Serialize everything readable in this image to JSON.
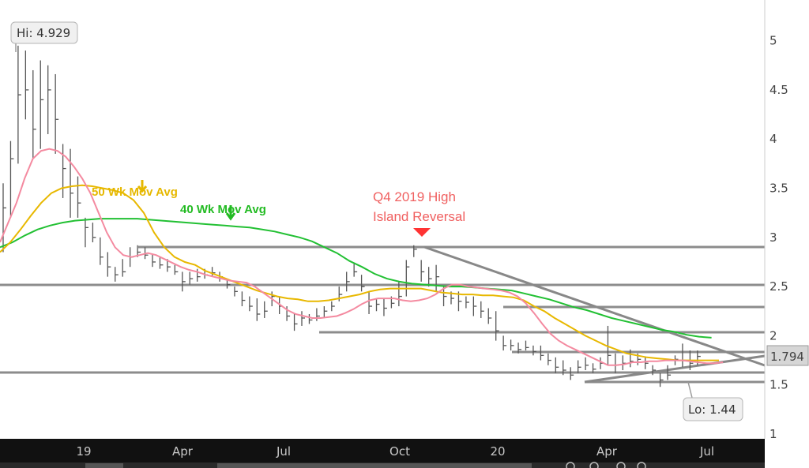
{
  "chart_data": {
    "type": "bar",
    "subtype": "weekly OHLC price chart",
    "y_axis": {
      "ticks": [
        "5",
        "4.5",
        "4",
        "3.5",
        "3",
        "2.5",
        "2",
        "1.5",
        "1"
      ],
      "range": [
        1,
        5.25
      ],
      "side": "right"
    },
    "x_axis": {
      "ticks": [
        "19",
        "Apr",
        "Jul",
        "Oct",
        "20",
        "Apr",
        "Jul"
      ]
    },
    "grid": false,
    "last_price": "1.794",
    "high_label": "Hi: 4.929",
    "low_label": "Lo: 1.44",
    "annotations": [
      {
        "text": "50 Wk Mov Avg",
        "color": "#e6b800"
      },
      {
        "text": "40 Wk Mov Avg",
        "color": "#22bb22"
      },
      {
        "text": "Q4 2019 High",
        "color": "#f06060"
      },
      {
        "text": "Island Reversal",
        "color": "#f06060"
      }
    ],
    "colors": {
      "ma_pink": "#f48aa0",
      "ma_yellow": "#e8b800",
      "ma_green": "#22c033",
      "price_bars": "#555555",
      "trendlines": "#888888",
      "axis_panel": "#111111",
      "arrow_red": "#ff3333"
    },
    "bars": [
      [
        2.85,
        3.3,
        3.55
      ],
      [
        3.2,
        3.8,
        3.98
      ],
      [
        3.75,
        4.45,
        4.95
      ],
      [
        4.2,
        4.5,
        4.9
      ],
      [
        3.8,
        4.1,
        4.7
      ],
      [
        3.9,
        4.4,
        4.8
      ],
      [
        4.05,
        4.5,
        4.75
      ],
      [
        3.85,
        4.2,
        4.66
      ],
      [
        3.4,
        3.7,
        3.95
      ],
      [
        3.2,
        3.45,
        3.9
      ],
      [
        3.2,
        3.35,
        3.62
      ],
      [
        2.9,
        3.1,
        3.2
      ],
      [
        2.95,
        3.0,
        3.15
      ],
      [
        2.72,
        2.8,
        3.0
      ],
      [
        2.6,
        2.7,
        2.85
      ],
      [
        2.55,
        2.62,
        2.7
      ],
      [
        2.6,
        2.65,
        2.78
      ],
      [
        2.7,
        2.8,
        2.9
      ],
      [
        2.8,
        2.85,
        2.92
      ],
      [
        2.78,
        2.82,
        2.9
      ],
      [
        2.7,
        2.75,
        2.83
      ],
      [
        2.68,
        2.72,
        2.8
      ],
      [
        2.65,
        2.7,
        2.78
      ],
      [
        2.62,
        2.65,
        2.72
      ],
      [
        2.45,
        2.55,
        2.65
      ],
      [
        2.52,
        2.58,
        2.65
      ],
      [
        2.55,
        2.6,
        2.68
      ],
      [
        2.58,
        2.62,
        2.68
      ],
      [
        2.6,
        2.64,
        2.7
      ],
      [
        2.55,
        2.6,
        2.65
      ],
      [
        2.48,
        2.52,
        2.58
      ],
      [
        2.4,
        2.45,
        2.5
      ],
      [
        2.3,
        2.36,
        2.45
      ],
      [
        2.25,
        2.3,
        2.4
      ],
      [
        2.15,
        2.22,
        2.38
      ],
      [
        2.18,
        2.25,
        2.35
      ],
      [
        2.3,
        2.4,
        2.45
      ],
      [
        2.22,
        2.3,
        2.4
      ],
      [
        2.15,
        2.2,
        2.3
      ],
      [
        2.05,
        2.12,
        2.22
      ],
      [
        2.1,
        2.18,
        2.25
      ],
      [
        2.12,
        2.16,
        2.22
      ],
      [
        2.15,
        2.2,
        2.28
      ],
      [
        2.18,
        2.25,
        2.3
      ],
      [
        2.25,
        2.3,
        2.35
      ],
      [
        2.35,
        2.42,
        2.5
      ],
      [
        2.45,
        2.55,
        2.65
      ],
      [
        2.6,
        2.65,
        2.73
      ],
      [
        2.45,
        2.5,
        2.62
      ],
      [
        2.22,
        2.3,
        2.45
      ],
      [
        2.25,
        2.32,
        2.38
      ],
      [
        2.2,
        2.28,
        2.38
      ],
      [
        2.28,
        2.33,
        2.4
      ],
      [
        2.3,
        2.4,
        2.55
      ],
      [
        2.4,
        2.7,
        2.77
      ],
      [
        2.8,
        2.88,
        2.92
      ],
      [
        2.55,
        2.65,
        2.77
      ],
      [
        2.5,
        2.58,
        2.7
      ],
      [
        2.45,
        2.6,
        2.72
      ],
      [
        2.3,
        2.4,
        2.5
      ],
      [
        2.32,
        2.38,
        2.45
      ],
      [
        2.25,
        2.35,
        2.45
      ],
      [
        2.28,
        2.34,
        2.4
      ],
      [
        2.2,
        2.3,
        2.4
      ],
      [
        2.18,
        2.25,
        2.35
      ],
      [
        2.12,
        2.18,
        2.28
      ],
      [
        1.95,
        2.05,
        2.25
      ],
      [
        1.85,
        1.9,
        2.0
      ],
      [
        1.85,
        1.9,
        1.96
      ],
      [
        1.82,
        1.86,
        1.93
      ],
      [
        1.85,
        1.88,
        1.95
      ],
      [
        1.8,
        1.84,
        1.9
      ],
      [
        1.75,
        1.8,
        1.9
      ],
      [
        1.7,
        1.75,
        1.82
      ],
      [
        1.62,
        1.68,
        1.78
      ],
      [
        1.6,
        1.65,
        1.75
      ],
      [
        1.55,
        1.6,
        1.68
      ],
      [
        1.62,
        1.68,
        1.75
      ],
      [
        1.65,
        1.7,
        1.78
      ],
      [
        1.62,
        1.66,
        1.72
      ],
      [
        1.66,
        1.72,
        1.78
      ],
      [
        1.7,
        1.8,
        2.1
      ],
      [
        1.62,
        1.7,
        1.82
      ],
      [
        1.65,
        1.72,
        1.8
      ],
      [
        1.68,
        1.74,
        1.86
      ],
      [
        1.7,
        1.76,
        1.82
      ],
      [
        1.66,
        1.72,
        1.78
      ],
      [
        1.6,
        1.65,
        1.7
      ],
      [
        1.48,
        1.55,
        1.62
      ],
      [
        1.55,
        1.6,
        1.7
      ],
      [
        1.7,
        1.76,
        1.8
      ],
      [
        1.68,
        1.75,
        1.92
      ],
      [
        1.65,
        1.72,
        1.85
      ],
      [
        1.7,
        1.79,
        1.85
      ]
    ],
    "ma_pink": [
      2.95,
      3.15,
      3.35,
      3.6,
      3.8,
      3.88,
      3.9,
      3.88,
      3.82,
      3.72,
      3.6,
      3.45,
      3.25,
      3.05,
      2.9,
      2.82,
      2.8,
      2.82,
      2.84,
      2.82,
      2.78,
      2.74,
      2.7,
      2.67,
      2.65,
      2.62,
      2.6,
      2.58,
      2.56,
      2.55,
      2.54,
      2.5,
      2.44,
      2.38,
      2.32,
      2.26,
      2.22,
      2.2,
      2.18,
      2.18,
      2.19,
      2.2,
      2.23,
      2.27,
      2.32,
      2.36,
      2.38,
      2.38,
      2.38,
      2.36,
      2.35,
      2.36,
      2.38,
      2.42,
      2.48,
      2.52,
      2.52,
      2.5,
      2.49,
      2.48,
      2.47,
      2.46,
      2.44,
      2.4,
      2.33,
      2.23,
      2.12,
      2.02,
      1.95,
      1.9,
      1.86,
      1.82,
      1.78,
      1.74,
      1.7,
      1.7,
      1.71,
      1.73,
      1.73,
      1.74,
      1.74,
      1.75,
      1.75,
      1.75,
      1.74,
      1.73,
      1.72,
      1.72,
      1.73
    ],
    "ma_yellow": [
      2.85,
      2.95,
      3.08,
      3.22,
      3.35,
      3.45,
      3.5,
      3.52,
      3.53,
      3.52,
      3.5,
      3.48,
      3.45,
      3.38,
      3.25,
      3.05,
      2.9,
      2.8,
      2.75,
      2.72,
      2.66,
      2.62,
      2.58,
      2.54,
      2.5,
      2.46,
      2.43,
      2.4,
      2.38,
      2.37,
      2.35,
      2.35,
      2.36,
      2.38,
      2.4,
      2.42,
      2.45,
      2.47,
      2.48,
      2.48,
      2.48,
      2.48,
      2.46,
      2.44,
      2.43,
      2.42,
      2.42,
      2.41,
      2.41,
      2.4,
      2.39,
      2.36,
      2.3,
      2.25,
      2.18,
      2.12,
      2.06,
      2.0,
      1.95,
      1.9,
      1.86,
      1.82,
      1.8,
      1.78,
      1.77,
      1.76,
      1.75,
      1.75,
      1.75,
      1.75,
      1.75
    ],
    "ma_green": [
      2.9,
      2.95,
      3.02,
      3.08,
      3.12,
      3.15,
      3.17,
      3.18,
      3.19,
      3.19,
      3.19,
      3.19,
      3.18,
      3.17,
      3.16,
      3.15,
      3.14,
      3.13,
      3.12,
      3.11,
      3.1,
      3.08,
      3.06,
      3.03,
      3.0,
      2.96,
      2.9,
      2.84,
      2.76,
      2.7,
      2.63,
      2.58,
      2.55,
      2.53,
      2.52,
      2.51,
      2.5,
      2.5,
      2.49,
      2.48,
      2.47,
      2.46,
      2.43,
      2.4,
      2.37,
      2.33,
      2.29,
      2.26,
      2.22,
      2.18,
      2.15,
      2.12,
      2.09,
      2.06,
      2.04,
      2.01,
      1.99,
      1.98
    ]
  }
}
